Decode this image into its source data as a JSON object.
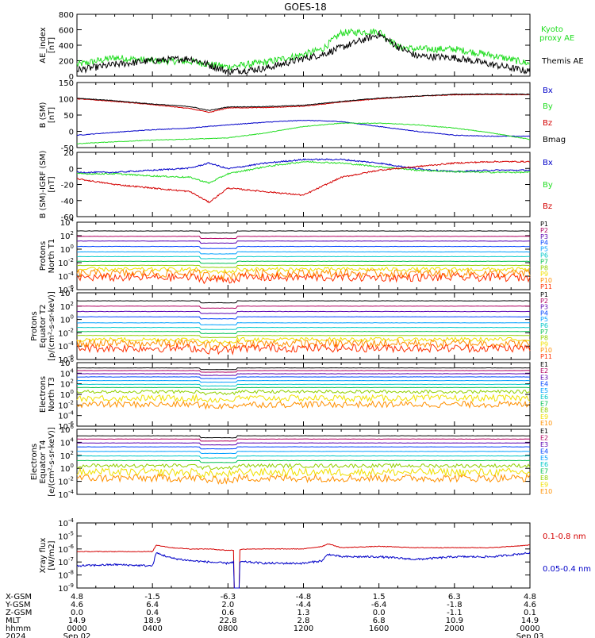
{
  "title": "GOES-18",
  "colors": {
    "black": "#000000",
    "red": "#d40000",
    "green": "#22dd22",
    "blue": "#0000c8",
    "ch": [
      "#000000",
      "#b00060",
      "#5a00b0",
      "#0044ff",
      "#00a0ff",
      "#00c8c8",
      "#00c050",
      "#90d000",
      "#f0e000",
      "#ff9000",
      "#ff3000",
      "#c00000"
    ]
  },
  "panels": [
    {
      "id": "ae",
      "ylabel": [
        "AE_index",
        "[nT]"
      ],
      "ticks": [
        "800",
        "600",
        "400",
        "200",
        "0"
      ],
      "legend": [
        {
          "text": "Kyoto",
          "color": "#22dd22"
        },
        {
          "text": "proxy AE",
          "color": "#22dd22"
        },
        {
          "text": "Themis AE",
          "color": "#000000"
        }
      ]
    },
    {
      "id": "b_sm",
      "ylabel": [
        "B (SM)",
        "[nT]"
      ],
      "ticks": [
        "150",
        "100",
        "50",
        "0",
        "-50"
      ],
      "legend": [
        {
          "text": "Bx",
          "color": "#0000c8"
        },
        {
          "text": "By",
          "color": "#22dd22"
        },
        {
          "text": "Bz",
          "color": "#d40000"
        },
        {
          "text": "Bmag",
          "color": "#000000"
        }
      ]
    },
    {
      "id": "b_igrf",
      "ylabel": [
        "B (SM)-IGRF (SM)",
        "[nT]"
      ],
      "ticks": [
        "20",
        "0",
        "-20",
        "-40",
        "-60"
      ],
      "legend": [
        {
          "text": "Bx",
          "color": "#0000c8"
        },
        {
          "text": "By",
          "color": "#22dd22"
        },
        {
          "text": "Bz",
          "color": "#d40000"
        }
      ]
    },
    {
      "id": "protons_t1",
      "ylabel": [
        "Protons",
        "North T1"
      ],
      "ticks": [
        "4",
        "2",
        "0",
        "-2",
        "-4",
        "-6"
      ],
      "legend": [
        {
          "text": "P1"
        },
        {
          "text": "P2"
        },
        {
          "text": "P3"
        },
        {
          "text": "P4"
        },
        {
          "text": "P5"
        },
        {
          "text": "P6"
        },
        {
          "text": "P7"
        },
        {
          "text": "P8"
        },
        {
          "text": "P9"
        },
        {
          "text": "P10"
        },
        {
          "text": "P11"
        }
      ]
    },
    {
      "id": "protons_t2",
      "ylabel": [
        "Protons",
        "Equator T2",
        "[p/(cm²-s-sr-keV)]"
      ],
      "ticks": [
        "4",
        "2",
        "0",
        "-2",
        "-4",
        "-6"
      ],
      "legend": [
        {
          "text": "P1"
        },
        {
          "text": "P2"
        },
        {
          "text": "P3"
        },
        {
          "text": "P4"
        },
        {
          "text": "P5"
        },
        {
          "text": "P6"
        },
        {
          "text": "P7"
        },
        {
          "text": "P8"
        },
        {
          "text": "P9"
        },
        {
          "text": "P10"
        },
        {
          "text": "P11"
        }
      ]
    },
    {
      "id": "electrons_t3",
      "ylabel": [
        "Electrons",
        "North T3"
      ],
      "ticks": [
        "6",
        "4",
        "2",
        "0",
        "-2",
        "-4",
        "-6"
      ],
      "legend": [
        {
          "text": "E1"
        },
        {
          "text": "E2"
        },
        {
          "text": "E3"
        },
        {
          "text": "E4"
        },
        {
          "text": "E5"
        },
        {
          "text": "E6"
        },
        {
          "text": "E7"
        },
        {
          "text": "E8"
        },
        {
          "text": "E9"
        },
        {
          "text": "E10"
        }
      ]
    },
    {
      "id": "electrons_t4",
      "ylabel": [
        "Electrons",
        "Equator T4",
        "[e/(cm²-s-sr-keV)]"
      ],
      "ticks": [
        "6",
        "4",
        "2",
        "0",
        "-2",
        "-4"
      ],
      "legend": [
        {
          "text": "E1"
        },
        {
          "text": "E2"
        },
        {
          "text": "E3"
        },
        {
          "text": "E4"
        },
        {
          "text": "E5"
        },
        {
          "text": "E6"
        },
        {
          "text": "E7"
        },
        {
          "text": "E8"
        },
        {
          "text": "E9"
        },
        {
          "text": "E10"
        }
      ]
    },
    {
      "id": "xray",
      "ylabel": [
        "Xray flux",
        "[W/m2]"
      ],
      "ticks": [
        "-4",
        "-5",
        "-6",
        "-7",
        "-8",
        "-9"
      ],
      "legend": [
        {
          "text": "0.1-0.8 nm",
          "color": "#d40000"
        },
        {
          "text": "0.05-0.4 nm",
          "color": "#0000c8"
        }
      ]
    }
  ],
  "ephemeris": {
    "row_labels": [
      "X-GSM",
      "Y-GSM",
      "Z-GSM",
      "MLT",
      "hhmm",
      "2024"
    ],
    "columns": [
      [
        "4.8",
        "4.6",
        "0.0",
        "14.9",
        "0000",
        "Sep 02"
      ],
      [
        "-1.5",
        "6.4",
        "0.4",
        "18.9",
        "0400",
        ""
      ],
      [
        "-6.3",
        "2.0",
        "0.6",
        "22.8",
        "0800",
        ""
      ],
      [
        "-4.8",
        "-4.4",
        "1.3",
        "2.8",
        "1200",
        ""
      ],
      [
        "1.5",
        "-6.4",
        "0.0",
        "6.8",
        "1600",
        ""
      ],
      [
        "6.3",
        "-1.8",
        "-1.1",
        "10.9",
        "2000",
        ""
      ],
      [
        "4.8",
        "4.6",
        "0.1",
        "14.9",
        "0000",
        "Sep 03"
      ]
    ]
  },
  "chart_data": {
    "type": "line",
    "title": "GOES-18",
    "x_ticks": [
      "0000",
      "0400",
      "0800",
      "1200",
      "1600",
      "2000",
      "0000"
    ],
    "x_range_hours": [
      0,
      24
    ],
    "grid": false,
    "subplots": [
      {
        "name": "AE_index",
        "units": "nT",
        "ylim": [
          0,
          800
        ],
        "x": [
          0,
          2,
          4,
          6,
          8,
          10,
          12,
          13,
          14,
          16,
          17,
          18,
          20,
          22,
          24
        ],
        "series": [
          {
            "name": "Kyoto proxy AE",
            "color": "#22dd22",
            "values": [
              150,
              240,
              200,
              190,
              120,
              180,
              280,
              350,
              560,
              580,
              380,
              350,
              350,
              270,
              160
            ]
          },
          {
            "name": "Themis AE",
            "color": "#000000",
            "values": [
              80,
              150,
              200,
              230,
              60,
              100,
              230,
              280,
              370,
              540,
              380,
              260,
              240,
              150,
              60
            ]
          }
        ]
      },
      {
        "name": "B (SM)",
        "units": "nT",
        "ylim": [
          -50,
          150
        ],
        "x": [
          0,
          2,
          4,
          6,
          7,
          8,
          10,
          12,
          14,
          16,
          18,
          20,
          22,
          24
        ],
        "series": [
          {
            "name": "Bx",
            "color": "#0000c8",
            "values": [
              -12,
              -3,
              5,
              10,
              15,
              20,
              28,
              34,
              30,
              15,
              0,
              -12,
              -15,
              -15
            ]
          },
          {
            "name": "By",
            "color": "#22dd22",
            "values": [
              -38,
              -32,
              -27,
              -24,
              -22,
              -20,
              -5,
              15,
              25,
              25,
              20,
              10,
              -5,
              -25
            ]
          },
          {
            "name": "Bz",
            "color": "#d40000",
            "values": [
              100,
              92,
              82,
              70,
              58,
              72,
              73,
              77,
              90,
              100,
              108,
              112,
              113,
              113
            ]
          },
          {
            "name": "Bmag",
            "color": "#000000",
            "values": [
              102,
              94,
              84,
              76,
              64,
              75,
              76,
              80,
              92,
              102,
              108,
              114,
              115,
              114
            ]
          }
        ]
      },
      {
        "name": "B (SM)-IGRF (SM)",
        "units": "nT",
        "ylim": [
          -65,
          25
        ],
        "x": [
          0,
          2,
          4,
          6,
          7,
          8,
          10,
          12,
          14,
          16,
          18,
          20,
          22,
          24
        ],
        "series": [
          {
            "name": "Bx",
            "color": "#0000c8",
            "values": [
              -3,
              -3,
              0,
              3,
              10,
              2,
              10,
              15,
              15,
              10,
              2,
              -2,
              0,
              0
            ]
          },
          {
            "name": "By",
            "color": "#22dd22",
            "values": [
              -5,
              -5,
              -8,
              -10,
              -18,
              -5,
              5,
              12,
              10,
              5,
              0,
              -2,
              -3,
              -3
            ]
          },
          {
            "name": "Bz",
            "color": "#d40000",
            "values": [
              -12,
              -20,
              -25,
              -30,
              -45,
              -25,
              -30,
              -35,
              -10,
              0,
              5,
              10,
              12,
              12
            ]
          }
        ]
      },
      {
        "name": "Protons North T1",
        "scale": "log10",
        "ylim": [
          -6,
          4
        ],
        "levels": [
          2.7,
          1.9,
          1.2,
          0.4,
          -0.4,
          -1.1,
          -1.8,
          -2.4,
          -3.0,
          -3.6,
          -4.2
        ]
      },
      {
        "name": "Protons Equator T2",
        "units": "p/(cm²-s-sr-keV)",
        "scale": "log10",
        "ylim": [
          -6,
          4
        ],
        "levels": [
          2.8,
          2.0,
          1.2,
          0.4,
          -0.5,
          -1.2,
          -1.8,
          -2.4,
          -3.0,
          -3.6,
          -4.3
        ]
      },
      {
        "name": "Electrons North T3",
        "scale": "log10",
        "ylim": [
          -6,
          6
        ],
        "levels": [
          5.0,
          4.5,
          3.9,
          3.3,
          2.6,
          1.9,
          1.3,
          0.5,
          -0.7,
          -1.9
        ]
      },
      {
        "name": "Electrons Equator T4",
        "units": "e/(cm²-s-sr-keV)",
        "scale": "log10",
        "ylim": [
          -4,
          6
        ],
        "levels": [
          5.0,
          4.5,
          3.9,
          3.3,
          2.6,
          1.9,
          1.2,
          0.4,
          -0.6,
          -1.5
        ]
      },
      {
        "name": "Xray flux",
        "units": "W/m2",
        "scale": "log10",
        "ylim": [
          -9,
          -4
        ],
        "x": [
          0,
          2,
          4,
          4.2,
          5,
          6,
          7,
          7.9,
          8.3,
          9,
          10,
          11,
          12,
          13,
          13.3,
          14,
          16,
          18,
          20,
          22,
          24
        ],
        "series": [
          {
            "name": "0.1-0.8 nm",
            "color": "#d40000",
            "values": [
              -6.2,
              -6.2,
              -6.2,
              -5.7,
              -5.9,
              -6.0,
              -6.0,
              -6.1,
              -6.1,
              -6.0,
              -6.0,
              -6.0,
              -6.0,
              -5.8,
              -5.6,
              -5.9,
              -5.8,
              -5.9,
              -5.9,
              -5.9,
              -5.7
            ]
          },
          {
            "name": "0.05-0.4 nm",
            "color": "#0000c8",
            "values": [
              -7.3,
              -7.2,
              -7.3,
              -6.3,
              -6.7,
              -6.9,
              -7.0,
              -7.1,
              -7.0,
              -7.0,
              -7.1,
              -7.1,
              -7.1,
              -6.9,
              -6.4,
              -6.6,
              -6.6,
              -6.8,
              -6.6,
              -6.6,
              -6.3
            ]
          }
        ]
      }
    ]
  }
}
